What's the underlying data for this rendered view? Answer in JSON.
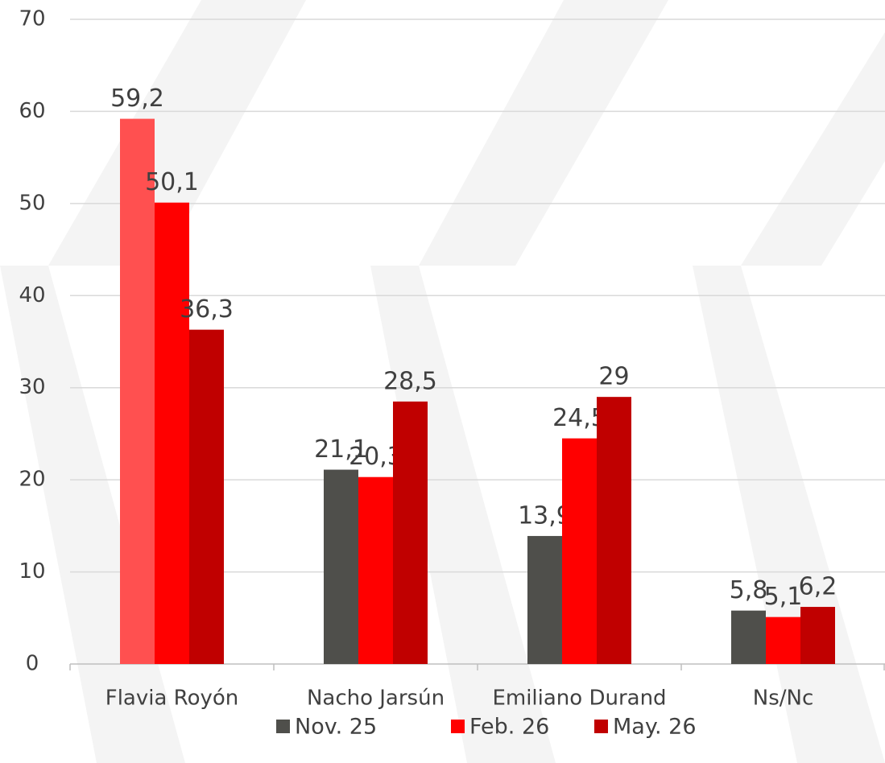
{
  "chart_data": {
    "type": "bar",
    "categories": [
      "Flavia Royón",
      "Nacho Jarsún",
      "Emiliano Durand",
      "Ns/Nc"
    ],
    "series": [
      {
        "name": "Nov. 25",
        "color": "#4f4f4b",
        "colors": [
          "#ff5050",
          "#4f4f4b",
          "#4f4f4b",
          "#4f4f4b"
        ],
        "values": [
          59.2,
          21.1,
          13.9,
          5.8
        ],
        "value_labels": [
          "59,2",
          "21,1",
          "13,9",
          "5,8"
        ]
      },
      {
        "name": "Feb. 26",
        "color": "#ff0000",
        "values": [
          50.1,
          20.3,
          24.5,
          5.1
        ],
        "value_labels": [
          "50,1",
          "20,3",
          "24,5",
          "5,1"
        ]
      },
      {
        "name": "May. 26",
        "color": "#c00000",
        "values": [
          36.3,
          28.5,
          29,
          6.2
        ],
        "value_labels": [
          "36,3",
          "28,5",
          "29",
          "6,2"
        ]
      }
    ],
    "ylim": [
      0,
      70
    ],
    "yticks": [
      0,
      10,
      20,
      30,
      40,
      50,
      60,
      70
    ],
    "grid": true,
    "legend": "bottom"
  }
}
